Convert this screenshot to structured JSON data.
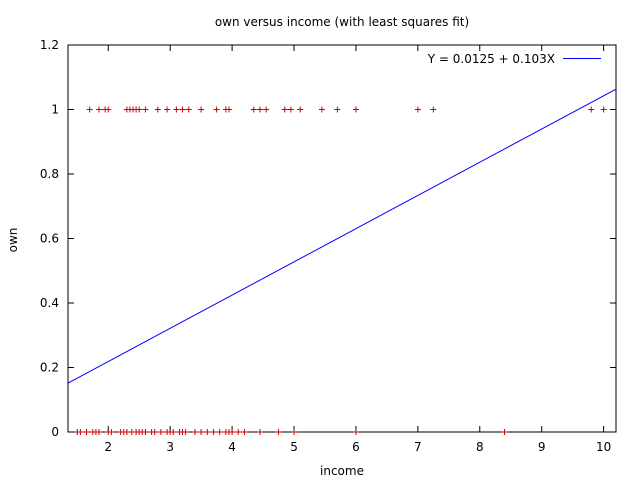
{
  "chart_data": {
    "type": "scatter",
    "title": "own versus income (with least squares fit)",
    "xlabel": "income",
    "ylabel": "own",
    "xlim": [
      1.35,
      10.2
    ],
    "ylim": [
      0,
      1.2
    ],
    "xticks": [
      2,
      3,
      4,
      5,
      6,
      7,
      8,
      9,
      10
    ],
    "yticks": [
      0,
      0.2,
      0.4,
      0.6,
      0.8,
      1,
      1.2
    ],
    "ytick_labels": [
      "0",
      "0.2",
      "0.4",
      "0.6",
      "0.8",
      "1",
      "1.2"
    ],
    "grid": false,
    "legend_position": "top-right",
    "series": [
      {
        "kind": "points",
        "marker": "+",
        "color": "#cc0000",
        "points": [
          [
            1.7,
            1
          ],
          [
            1.85,
            1
          ],
          [
            1.95,
            1
          ],
          [
            2.0,
            1
          ],
          [
            2.3,
            1
          ],
          [
            2.35,
            1
          ],
          [
            2.4,
            1
          ],
          [
            2.45,
            1
          ],
          [
            2.5,
            1
          ],
          [
            2.6,
            1
          ],
          [
            2.8,
            1
          ],
          [
            2.95,
            1
          ],
          [
            3.1,
            1
          ],
          [
            3.2,
            1
          ],
          [
            3.3,
            1
          ],
          [
            3.5,
            1
          ],
          [
            3.75,
            1
          ],
          [
            3.9,
            1
          ],
          [
            3.95,
            1
          ],
          [
            4.35,
            1
          ],
          [
            4.45,
            1
          ],
          [
            4.55,
            1
          ],
          [
            4.85,
            1
          ],
          [
            4.95,
            1
          ],
          [
            5.1,
            1
          ],
          [
            5.45,
            1
          ],
          [
            5.7,
            1
          ],
          [
            6.0,
            1
          ],
          [
            7.0,
            1
          ],
          [
            7.25,
            1
          ],
          [
            9.8,
            1
          ],
          [
            10.0,
            1
          ],
          [
            1.5,
            0
          ],
          [
            1.55,
            0
          ],
          [
            1.65,
            0
          ],
          [
            1.75,
            0
          ],
          [
            1.8,
            0
          ],
          [
            1.85,
            0
          ],
          [
            2.0,
            0
          ],
          [
            2.05,
            0
          ],
          [
            2.2,
            0
          ],
          [
            2.25,
            0
          ],
          [
            2.3,
            0
          ],
          [
            2.38,
            0
          ],
          [
            2.45,
            0
          ],
          [
            2.5,
            0
          ],
          [
            2.55,
            0
          ],
          [
            2.6,
            0
          ],
          [
            2.7,
            0
          ],
          [
            2.75,
            0
          ],
          [
            2.85,
            0
          ],
          [
            2.95,
            0
          ],
          [
            3.0,
            0
          ],
          [
            3.05,
            0
          ],
          [
            3.15,
            0
          ],
          [
            3.2,
            0
          ],
          [
            3.25,
            0
          ],
          [
            3.4,
            0
          ],
          [
            3.5,
            0
          ],
          [
            3.6,
            0
          ],
          [
            3.7,
            0
          ],
          [
            3.8,
            0
          ],
          [
            3.9,
            0
          ],
          [
            3.95,
            0
          ],
          [
            4.0,
            0
          ],
          [
            4.1,
            0
          ],
          [
            4.2,
            0
          ],
          [
            4.45,
            0
          ],
          [
            4.75,
            0
          ],
          [
            5.0,
            0
          ],
          [
            6.0,
            0
          ],
          [
            8.4,
            0
          ]
        ]
      },
      {
        "kind": "fit-line",
        "name": "Y = 0.0125 + 0.103X",
        "color": "#0000ff",
        "intercept": 0.0125,
        "slope": 0.103
      }
    ]
  }
}
